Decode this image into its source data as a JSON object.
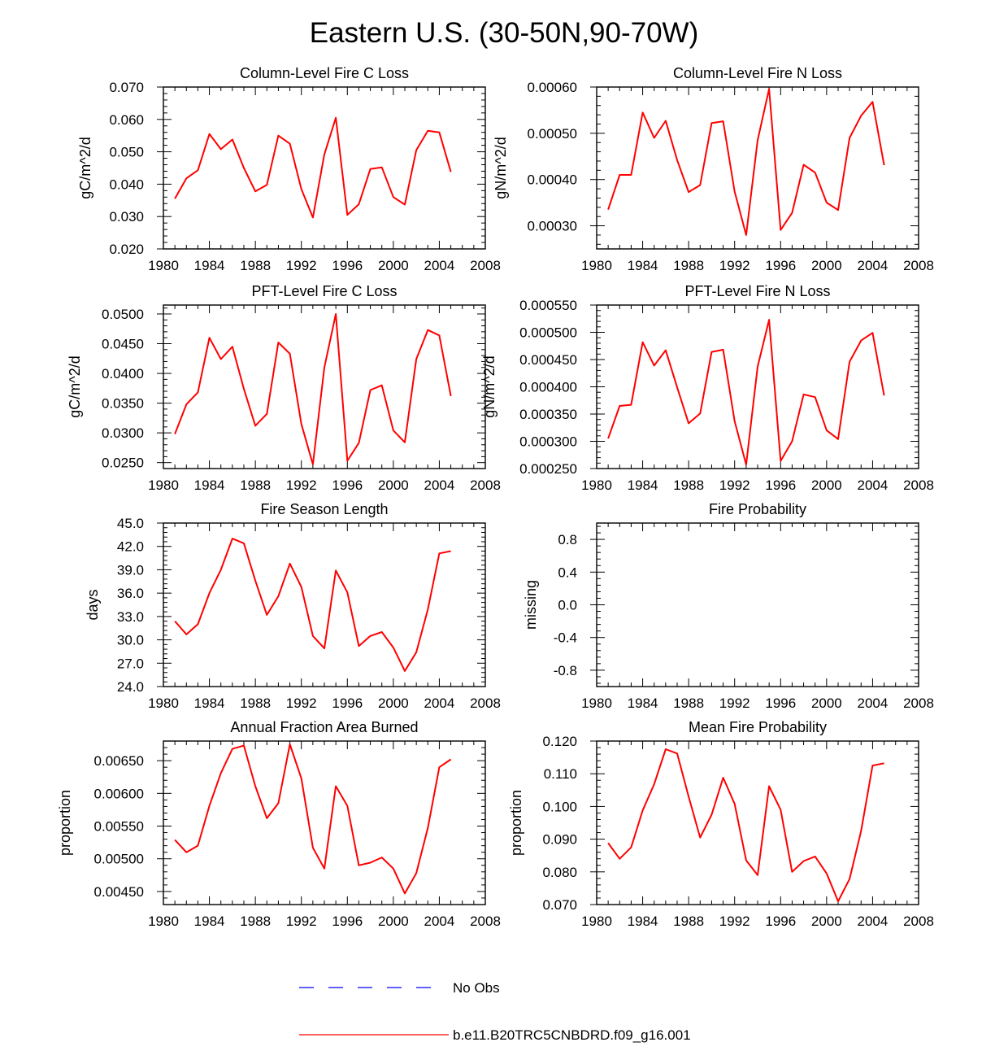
{
  "figure_title": "Eastern U.S. (30-50N,90-70W)",
  "legend": {
    "entries": [
      {
        "label": "No Obs",
        "color": "#0000ff",
        "style": "dashed"
      },
      {
        "label": "b.e11.B20TRC5CNBDRD.f09_g16.001",
        "color": "#ff0000",
        "style": "solid"
      }
    ]
  },
  "chart_data": [
    {
      "type": "line",
      "title": "Column-Level Fire C Loss",
      "xlabel": "",
      "ylabel": "gC/m^2/d",
      "xlim": [
        1980,
        2008
      ],
      "ylim": [
        0.02,
        0.07
      ],
      "xticks": [
        1980,
        1984,
        1988,
        1992,
        1996,
        2000,
        2004,
        2008
      ],
      "xtick_labels": [
        "1980",
        "1984",
        "1988",
        "1992",
        "1996",
        "2000",
        "2004",
        "2008"
      ],
      "yticks": [
        0.02,
        0.03,
        0.04,
        0.05,
        0.06,
        0.07
      ],
      "ytick_labels": [
        "0.020",
        "0.030",
        "0.040",
        "0.050",
        "0.060",
        "0.070"
      ],
      "series": [
        {
          "name": "b.e11.B20TRC5CNBDRD.f09_g16.001",
          "color": "#ff0000",
          "x": [
            1981,
            1982,
            1983,
            1984,
            1985,
            1986,
            1987,
            1988,
            1989,
            1990,
            1991,
            1992,
            1993,
            1994,
            1995,
            1996,
            1997,
            1998,
            1999,
            2000,
            2001,
            2002,
            2003,
            2004,
            2005
          ],
          "values": [
            0.0355,
            0.0418,
            0.0443,
            0.0555,
            0.0508,
            0.0538,
            0.045,
            0.0378,
            0.0398,
            0.055,
            0.0525,
            0.0385,
            0.0297,
            0.0492,
            0.0605,
            0.0305,
            0.0338,
            0.0447,
            0.0452,
            0.036,
            0.0337,
            0.0505,
            0.0565,
            0.056,
            0.0438
          ]
        }
      ]
    },
    {
      "type": "line",
      "title": "Column-Level Fire N Loss",
      "xlabel": "",
      "ylabel": "gN/m^2/d",
      "xlim": [
        1980,
        2008
      ],
      "ylim": [
        0.00025,
        0.0006
      ],
      "xticks": [
        1980,
        1984,
        1988,
        1992,
        1996,
        2000,
        2004,
        2008
      ],
      "xtick_labels": [
        "1980",
        "1984",
        "1988",
        "1992",
        "1996",
        "2000",
        "2004",
        "2008"
      ],
      "yticks": [
        0.0003,
        0.0004,
        0.0005,
        0.0006
      ],
      "ytick_labels": [
        "0.00030",
        "0.00040",
        "0.00050",
        "0.00060"
      ],
      "series": [
        {
          "name": "b.e11.B20TRC5CNBDRD.f09_g16.001",
          "color": "#ff0000",
          "x": [
            1981,
            1982,
            1983,
            1984,
            1985,
            1986,
            1987,
            1988,
            1989,
            1990,
            1991,
            1992,
            1993,
            1994,
            1995,
            1996,
            1997,
            1998,
            1999,
            2000,
            2001,
            2002,
            2003,
            2004,
            2005
          ],
          "values": [
            0.000335,
            0.00041,
            0.00041,
            0.000545,
            0.00049,
            0.000527,
            0.000442,
            0.000373,
            0.000388,
            0.000522,
            0.000526,
            0.000374,
            0.00028,
            0.000485,
            0.000596,
            0.000291,
            0.000328,
            0.000432,
            0.000415,
            0.00035,
            0.000334,
            0.00049,
            0.000538,
            0.000568,
            0.000431
          ]
        }
      ]
    },
    {
      "type": "line",
      "title": "PFT-Level Fire C Loss",
      "xlabel": "",
      "ylabel": "gC/m^2/d",
      "xlim": [
        1980,
        2008
      ],
      "ylim": [
        0.024,
        0.0515
      ],
      "xticks": [
        1980,
        1984,
        1988,
        1992,
        1996,
        2000,
        2004,
        2008
      ],
      "xtick_labels": [
        "1980",
        "1984",
        "1988",
        "1992",
        "1996",
        "2000",
        "2004",
        "2008"
      ],
      "yticks": [
        0.025,
        0.03,
        0.035,
        0.04,
        0.045,
        0.05
      ],
      "ytick_labels": [
        "0.0250",
        "0.0300",
        "0.0350",
        "0.0400",
        "0.0450",
        "0.0500"
      ],
      "series": [
        {
          "name": "b.e11.B20TRC5CNBDRD.f09_g16.001",
          "color": "#ff0000",
          "x": [
            1981,
            1982,
            1983,
            1984,
            1985,
            1986,
            1987,
            1988,
            1989,
            1990,
            1991,
            1992,
            1993,
            1994,
            1995,
            1996,
            1997,
            1998,
            1999,
            2000,
            2001,
            2002,
            2003,
            2004,
            2005
          ],
          "values": [
            0.0298,
            0.0348,
            0.0368,
            0.046,
            0.0424,
            0.0445,
            0.0374,
            0.0312,
            0.0332,
            0.0452,
            0.0433,
            0.0315,
            0.0247,
            0.041,
            0.05,
            0.0253,
            0.0283,
            0.0372,
            0.038,
            0.0304,
            0.0284,
            0.0424,
            0.0473,
            0.0464,
            0.0362
          ]
        }
      ]
    },
    {
      "type": "line",
      "title": "PFT-Level Fire N Loss",
      "xlabel": "",
      "ylabel": "gN/m^2/d",
      "xlim": [
        1980,
        2008
      ],
      "ylim": [
        0.00025,
        0.00055
      ],
      "xticks": [
        1980,
        1984,
        1988,
        1992,
        1996,
        2000,
        2004,
        2008
      ],
      "xtick_labels": [
        "1980",
        "1984",
        "1988",
        "1992",
        "1996",
        "2000",
        "2004",
        "2008"
      ],
      "yticks": [
        0.00025,
        0.0003,
        0.00035,
        0.0004,
        0.00045,
        0.0005,
        0.00055
      ],
      "ytick_labels": [
        "0.000250",
        "0.000300",
        "0.000350",
        "0.000400",
        "0.000450",
        "0.000500",
        "0.000550"
      ],
      "series": [
        {
          "name": "b.e11.B20TRC5CNBDRD.f09_g16.001",
          "color": "#ff0000",
          "x": [
            1981,
            1982,
            1983,
            1984,
            1985,
            1986,
            1987,
            1988,
            1989,
            1990,
            1991,
            1992,
            1993,
            1994,
            1995,
            1996,
            1997,
            1998,
            1999,
            2000,
            2001,
            2002,
            2003,
            2004,
            2005
          ],
          "values": [
            0.000305,
            0.000365,
            0.000367,
            0.000482,
            0.000439,
            0.000467,
            0.000399,
            0.000333,
            0.000351,
            0.000464,
            0.000468,
            0.000337,
            0.000257,
            0.000437,
            0.000523,
            0.000264,
            0.0003,
            0.000386,
            0.000381,
            0.00032,
            0.000304,
            0.000446,
            0.000485,
            0.000499,
            0.000384
          ]
        }
      ]
    },
    {
      "type": "line",
      "title": "Fire Season Length",
      "xlabel": "",
      "ylabel": "days",
      "xlim": [
        1980,
        2008
      ],
      "ylim": [
        24.0,
        45.0
      ],
      "xticks": [
        1980,
        1984,
        1988,
        1992,
        1996,
        2000,
        2004,
        2008
      ],
      "xtick_labels": [
        "1980",
        "1984",
        "1988",
        "1992",
        "1996",
        "2000",
        "2004",
        "2008"
      ],
      "yticks": [
        24,
        27,
        30,
        33,
        36,
        39,
        42,
        45
      ],
      "ytick_labels": [
        "24.0",
        "27.0",
        "30.0",
        "33.0",
        "36.0",
        "39.0",
        "42.0",
        "45.0"
      ],
      "series": [
        {
          "name": "b.e11.B20TRC5CNBDRD.f09_g16.001",
          "color": "#ff0000",
          "x": [
            1981,
            1982,
            1983,
            1984,
            1985,
            1986,
            1987,
            1988,
            1989,
            1990,
            1991,
            1992,
            1993,
            1994,
            1995,
            1996,
            1997,
            1998,
            1999,
            2000,
            2001,
            2002,
            2003,
            2004,
            2005
          ],
          "values": [
            32.4,
            30.7,
            32.0,
            36.0,
            39.0,
            43.0,
            42.4,
            37.6,
            33.2,
            35.6,
            39.8,
            36.8,
            30.5,
            28.9,
            38.9,
            36.1,
            29.2,
            30.5,
            31.0,
            29.0,
            26.0,
            28.4,
            33.9,
            41.1,
            41.4
          ]
        }
      ]
    },
    {
      "type": "line",
      "title": "Fire Probability",
      "xlabel": "",
      "ylabel": "missing",
      "xlim": [
        1980,
        2008
      ],
      "ylim": [
        -1.0,
        1.0
      ],
      "xticks": [
        1980,
        1984,
        1988,
        1992,
        1996,
        2000,
        2004,
        2008
      ],
      "xtick_labels": [
        "1980",
        "1984",
        "1988",
        "1992",
        "1996",
        "2000",
        "2004",
        "2008"
      ],
      "yticks": [
        -0.8,
        -0.4,
        0.0,
        0.4,
        0.8
      ],
      "ytick_labels": [
        "-0.8",
        "-0.4",
        "0.0",
        "0.4",
        "0.8"
      ],
      "series": []
    },
    {
      "type": "line",
      "title": "Annual Fraction Area Burned",
      "xlabel": "",
      "ylabel": "proportion",
      "xlim": [
        1980,
        2008
      ],
      "ylim": [
        0.0043,
        0.0068
      ],
      "xticks": [
        1980,
        1984,
        1988,
        1992,
        1996,
        2000,
        2004,
        2008
      ],
      "xtick_labels": [
        "1980",
        "1984",
        "1988",
        "1992",
        "1996",
        "2000",
        "2004",
        "2008"
      ],
      "yticks": [
        0.0045,
        0.005,
        0.0055,
        0.006,
        0.0065
      ],
      "ytick_labels": [
        "0.00450",
        "0.00500",
        "0.00550",
        "0.00600",
        "0.00650"
      ],
      "series": [
        {
          "name": "b.e11.B20TRC5CNBDRD.f09_g16.001",
          "color": "#ff0000",
          "x": [
            1981,
            1982,
            1983,
            1984,
            1985,
            1986,
            1987,
            1988,
            1989,
            1990,
            1991,
            1992,
            1993,
            1994,
            1995,
            1996,
            1997,
            1998,
            1999,
            2000,
            2001,
            2002,
            2003,
            2004,
            2005
          ],
          "values": [
            0.00529,
            0.0051,
            0.0052,
            0.00581,
            0.00631,
            0.00668,
            0.00673,
            0.00611,
            0.00562,
            0.00585,
            0.00675,
            0.00623,
            0.00517,
            0.00485,
            0.00611,
            0.00581,
            0.0049,
            0.00494,
            0.00502,
            0.00485,
            0.00447,
            0.00478,
            0.00547,
            0.0064,
            0.00652
          ]
        }
      ]
    },
    {
      "type": "line",
      "title": "Mean Fire Probability",
      "xlabel": "",
      "ylabel": "proportion",
      "xlim": [
        1980,
        2008
      ],
      "ylim": [
        0.07,
        0.12
      ],
      "xticks": [
        1980,
        1984,
        1988,
        1992,
        1996,
        2000,
        2004,
        2008
      ],
      "xtick_labels": [
        "1980",
        "1984",
        "1988",
        "1992",
        "1996",
        "2000",
        "2004",
        "2008"
      ],
      "yticks": [
        0.07,
        0.08,
        0.09,
        0.1,
        0.11,
        0.12
      ],
      "ytick_labels": [
        "0.070",
        "0.080",
        "0.090",
        "0.100",
        "0.110",
        "0.120"
      ],
      "series": [
        {
          "name": "b.e11.B20TRC5CNBDRD.f09_g16.001",
          "color": "#ff0000",
          "x": [
            1981,
            1982,
            1983,
            1984,
            1985,
            1986,
            1987,
            1988,
            1989,
            1990,
            1991,
            1992,
            1993,
            1994,
            1995,
            1996,
            1997,
            1998,
            1999,
            2000,
            2001,
            2002,
            2003,
            2004,
            2005
          ],
          "values": [
            0.0888,
            0.084,
            0.0875,
            0.0988,
            0.1068,
            0.1175,
            0.1162,
            0.103,
            0.0905,
            0.0975,
            0.1088,
            0.1008,
            0.0835,
            0.079,
            0.1062,
            0.099,
            0.08,
            0.0833,
            0.0847,
            0.0795,
            0.071,
            0.0778,
            0.0925,
            0.1125,
            0.1132
          ]
        }
      ]
    }
  ]
}
